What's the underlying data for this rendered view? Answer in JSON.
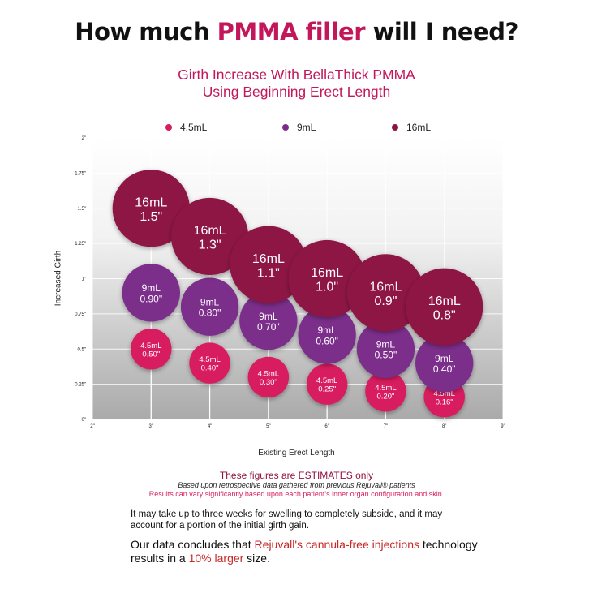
{
  "headline": {
    "before": "How much ",
    "highlight": "PMMA filler",
    "after": " will I need?"
  },
  "chart_data": {
    "type": "scatter",
    "subtitle_lines": [
      "Girth Increase With BellaThick PMMA",
      "Using Beginning Erect Length"
    ],
    "xlabel": "Existing Erect Length",
    "ylabel": "Increased Girth",
    "xlim": [
      2,
      9
    ],
    "ylim": [
      0,
      2
    ],
    "x_ticks": [
      "2\"",
      "3\"",
      "4\"",
      "5\"",
      "6\"",
      "7\"",
      "8\"",
      "9\""
    ],
    "y_ticks": [
      "0\"",
      "0.25\"",
      "0.5\"",
      "0.75\"",
      "1\"",
      "1.25\"",
      "1.5\"",
      "1.75\"",
      "2\""
    ],
    "grid": true,
    "legend_position": "top",
    "series": [
      {
        "name": "4.5mL",
        "volume": "4.5mL",
        "color": "#d81b60",
        "x": [
          3,
          4,
          5,
          6,
          7,
          8
        ],
        "y": [
          0.5,
          0.4,
          0.3,
          0.25,
          0.2,
          0.16
        ],
        "labels": [
          "0.50\"",
          "0.40\"",
          "0.30\"",
          "0.25\"",
          "0.20\"",
          "0.16\""
        ]
      },
      {
        "name": "9mL",
        "volume": "9mL",
        "color": "#7b2d8b",
        "x": [
          3,
          4,
          5,
          6,
          7,
          8
        ],
        "y": [
          0.9,
          0.8,
          0.7,
          0.6,
          0.5,
          0.4
        ],
        "labels": [
          "0.90\"",
          "0.80\"",
          "0.70\"",
          "0.60\"",
          "0.50\"",
          "0.40\""
        ]
      },
      {
        "name": "16mL",
        "volume": "16mL",
        "color": "#8e1245",
        "x": [
          3,
          4,
          5,
          6,
          7,
          8
        ],
        "y": [
          1.5,
          1.3,
          1.1,
          1.0,
          0.9,
          0.8
        ],
        "labels": [
          "1.5\"",
          "1.3\"",
          "1.1\"",
          "1.0\"",
          "0.9\"",
          "0.8\""
        ]
      }
    ]
  },
  "notes": {
    "title": "These figures are ESTIMATES only",
    "basis": "Based upon retrospective data gathered from previous Rejuvall® patients",
    "variance": "Results can vary significantly based upon each patient's inner organ configuration and skin."
  },
  "body": {
    "para1": "It may take up to three weeks for swelling to completely subside, and it may account for a portion of the initial girth gain.",
    "para2_a": "Our data concludes that ",
    "para2_b": "Rejuvall's cannula-free injections",
    "para2_c": " technology results in a ",
    "para2_d": "10% larger",
    "para2_e": " size."
  }
}
